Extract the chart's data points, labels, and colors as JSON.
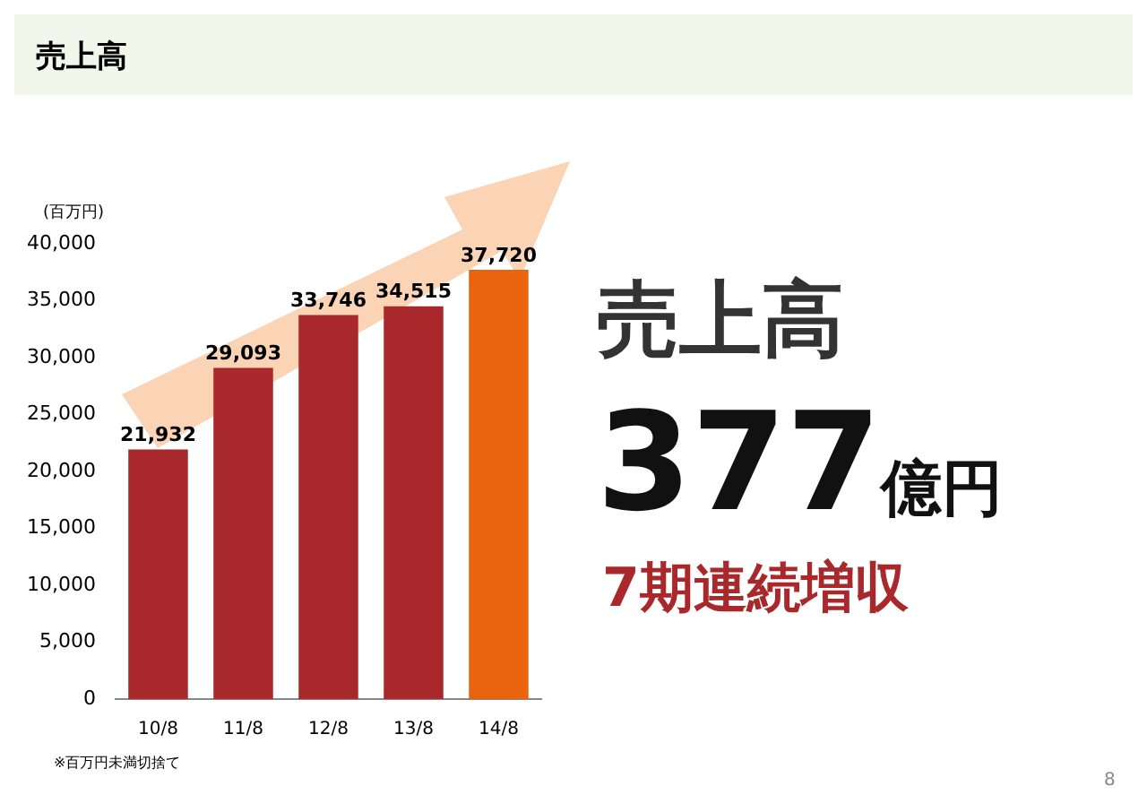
{
  "chart_data": {
    "type": "bar",
    "title": "売上高",
    "ylabel": "(百万円)",
    "categories": [
      "10/8",
      "11/8",
      "12/8",
      "13/8",
      "14/8"
    ],
    "values": [
      21932,
      29093,
      33746,
      34515,
      37720
    ],
    "value_labels": [
      "21,932",
      "29,093",
      "33,746",
      "34,515",
      "37,720"
    ],
    "colors": [
      "#a8282b",
      "#a8282b",
      "#a8282b",
      "#a8282b",
      "#ea6410"
    ],
    "ylim": [
      0,
      40000
    ],
    "yticks": [
      {
        "value": 0,
        "label": "0"
      },
      {
        "value": 5000,
        "label": "5,000"
      },
      {
        "value": 10000,
        "label": "10,000"
      },
      {
        "value": 15000,
        "label": "15,000"
      },
      {
        "value": 20000,
        "label": "20,000"
      },
      {
        "value": 25000,
        "label": "25,000"
      },
      {
        "value": 30000,
        "label": "30,000"
      },
      {
        "value": 35000,
        "label": "35,000"
      },
      {
        "value": 40000,
        "label": "40,000"
      }
    ],
    "annotations": [
      "売上高",
      "377億円",
      "7期連続増収",
      "※百万円未満切捨て",
      "8"
    ]
  }
}
